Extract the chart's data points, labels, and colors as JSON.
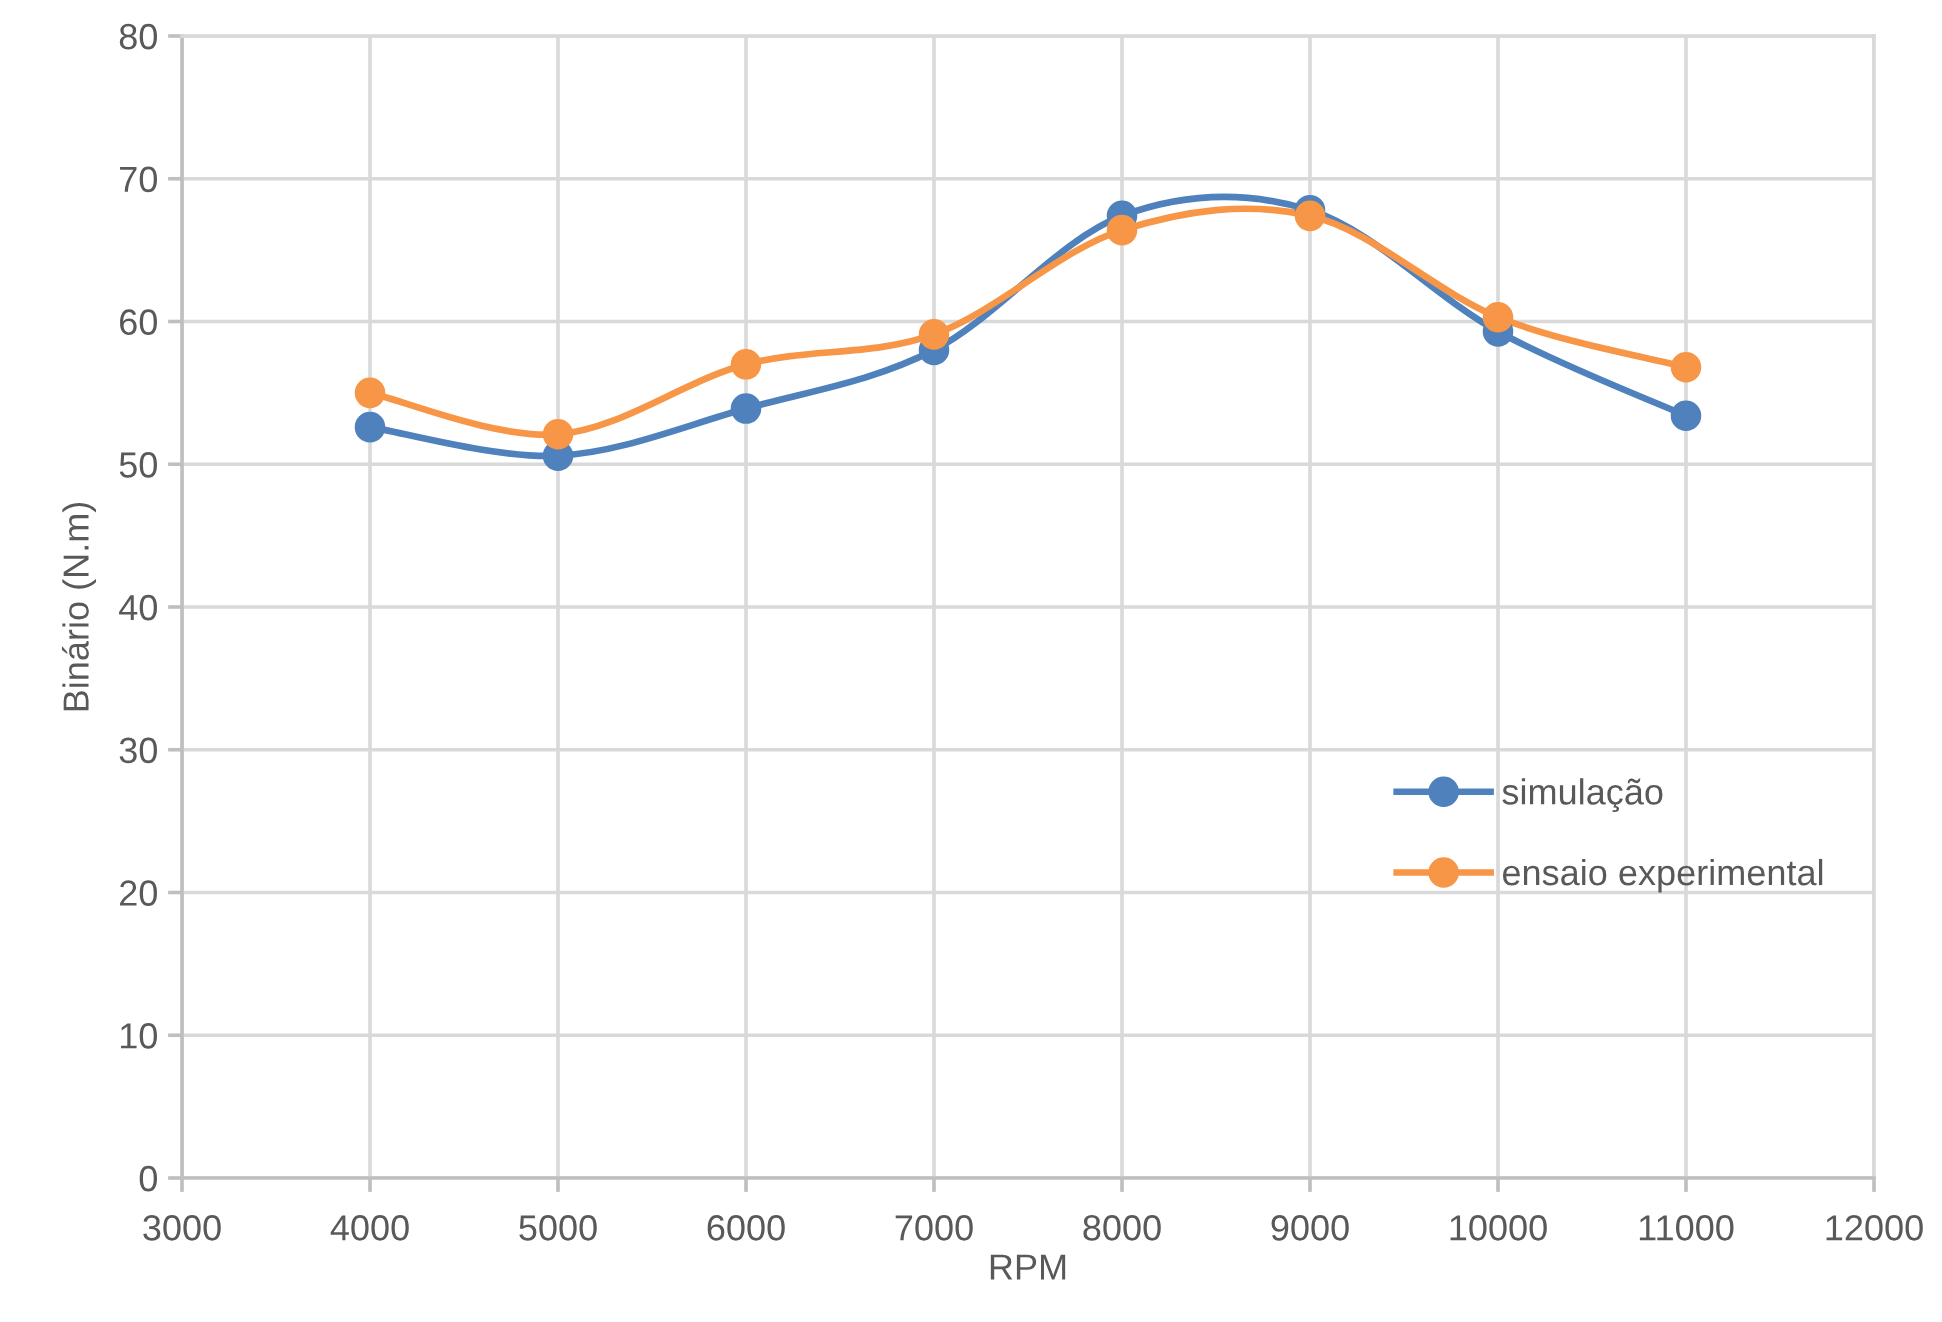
{
  "chart_data": {
    "type": "line",
    "xlabel": "RPM",
    "ylabel": "Binário (N.m)",
    "x": [
      4000,
      5000,
      6000,
      7000,
      8000,
      9000,
      10000,
      11000
    ],
    "series": [
      {
        "name": "simulação",
        "color": "#4f81bd",
        "values": [
          52.6,
          50.6,
          53.9,
          58.0,
          67.4,
          67.8,
          59.3,
          53.4
        ]
      },
      {
        "name": "ensaio experimental",
        "color": "#f79646",
        "values": [
          55.0,
          52.1,
          57.0,
          59.1,
          66.4,
          67.4,
          60.3,
          56.8
        ]
      }
    ],
    "xlim": [
      3000,
      12000
    ],
    "xticks": [
      3000,
      4000,
      5000,
      6000,
      7000,
      8000,
      9000,
      10000,
      11000,
      12000
    ],
    "ylim": [
      0,
      80
    ],
    "yticks": [
      0,
      10,
      20,
      30,
      40,
      50,
      60,
      70,
      80
    ],
    "grid": true,
    "legend": "right",
    "marker": "circle",
    "line_style": "solid"
  }
}
